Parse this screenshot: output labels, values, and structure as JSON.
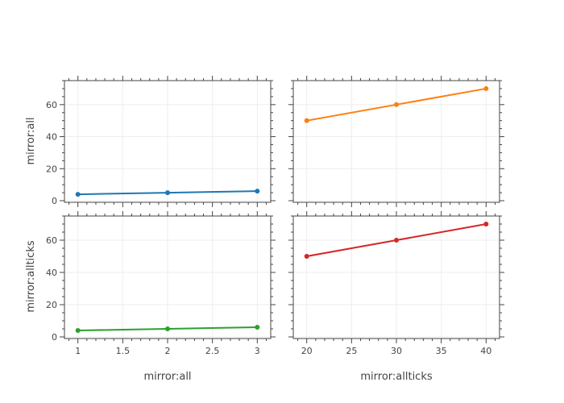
{
  "chart_data": {
    "type": "line",
    "layout": "2x2 subplots with shared x axes per column and shared y axes per row",
    "grid": true,
    "colors": {
      "series1": "#1f77b4",
      "series2": "#ff7f0e",
      "series3": "#2ca02c",
      "series4": "#d62728",
      "grid": "#eeeeee",
      "axis": "#444444"
    },
    "axes": {
      "x_left": {
        "title": "mirror:all",
        "range": [
          0.85,
          3.15
        ],
        "ticks": [
          1,
          1.5,
          2,
          2.5,
          3
        ],
        "tick_labels": [
          "1",
          "1.5",
          "2",
          "2.5",
          "3"
        ]
      },
      "x_right": {
        "title": "mirror:allticks",
        "range": [
          18.5,
          41.5
        ],
        "ticks": [
          20,
          25,
          30,
          35,
          40
        ],
        "tick_labels": [
          "20",
          "25",
          "30",
          "35",
          "40"
        ]
      },
      "y_top": {
        "title": "mirror:all",
        "range": [
          -1,
          75
        ],
        "ticks": [
          0,
          20,
          40,
          60
        ],
        "tick_labels": [
          "0",
          "20",
          "40",
          "60"
        ]
      },
      "y_bottom": {
        "title": "mirror:allticks",
        "range": [
          -1,
          75
        ],
        "ticks": [
          0,
          20,
          40,
          60
        ],
        "tick_labels": [
          "0",
          "20",
          "40",
          "60"
        ]
      }
    },
    "panels": [
      {
        "id": "top-left",
        "x": [
          1,
          2,
          3
        ],
        "y": [
          4,
          5,
          6
        ],
        "color": "#1f77b4"
      },
      {
        "id": "top-right",
        "x": [
          20,
          30,
          40
        ],
        "y": [
          50,
          60,
          70
        ],
        "color": "#ff7f0e"
      },
      {
        "id": "bottom-left",
        "x": [
          1,
          2,
          3
        ],
        "y": [
          4,
          5,
          6
        ],
        "color": "#2ca02c"
      },
      {
        "id": "bottom-right",
        "x": [
          20,
          30,
          40
        ],
        "y": [
          50,
          60,
          70
        ],
        "color": "#d62728"
      }
    ]
  }
}
